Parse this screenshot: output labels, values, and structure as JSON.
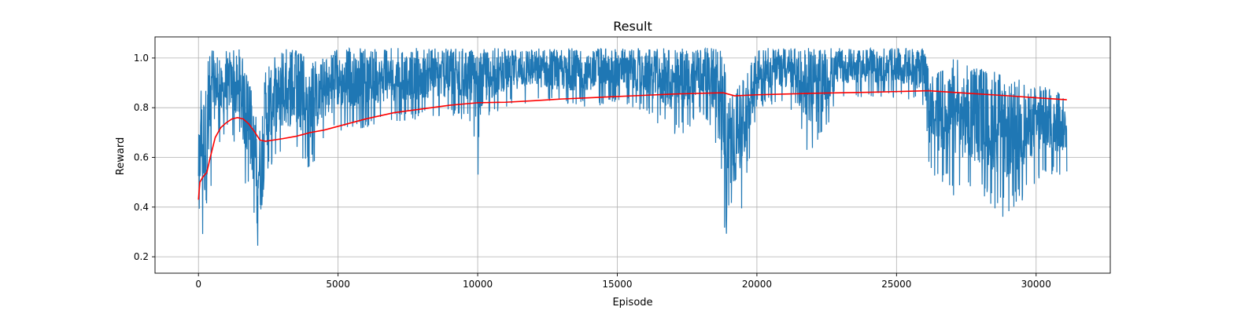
{
  "chart_data": {
    "type": "line",
    "title": "Result",
    "xlabel": "Episode",
    "ylabel": "Reward",
    "xlim": [
      -1556,
      32656
    ],
    "ylim": [
      0.134,
      1.085
    ],
    "grid": true,
    "xticks": [
      0,
      5000,
      10000,
      15000,
      20000,
      25000,
      30000
    ],
    "xtick_labels": [
      "0",
      "5000",
      "10000",
      "15000",
      "20000",
      "25000",
      "30000"
    ],
    "yticks": [
      0.2,
      0.4,
      0.6,
      0.8,
      1.0
    ],
    "ytick_labels": [
      "0.2",
      "0.4",
      "0.6",
      "0.8",
      "1.0"
    ],
    "colors": {
      "raw": "#1f77b4",
      "smoothed": "#ff0000"
    },
    "series": [
      {
        "values_kind": "raw_reward_envelope",
        "x": [
          0,
          100,
          200,
          300,
          400,
          600,
          800,
          1000,
          1200,
          1500,
          1800,
          2000,
          2200,
          2300,
          2400,
          2600,
          3000,
          3500,
          4000,
          4500,
          5000,
          6000,
          7000,
          8000,
          9000,
          9800,
          10000,
          10200,
          11000,
          12000,
          13000,
          14000,
          15000,
          16000,
          17000,
          17500,
          18000,
          18500,
          18800,
          19000,
          19300,
          19500,
          20000,
          21000,
          22000,
          23000,
          24000,
          25000,
          26000,
          26200,
          27000,
          28000,
          29000,
          30000,
          31100
        ],
        "upper": [
          0.72,
          0.9,
          0.95,
          1.0,
          1.04,
          1.04,
          0.98,
          1.04,
          1.04,
          1.04,
          0.9,
          0.85,
          0.8,
          0.78,
          0.97,
          1.0,
          1.04,
          1.04,
          0.98,
          1.0,
          1.04,
          1.04,
          1.04,
          1.04,
          1.04,
          1.04,
          1.0,
          1.04,
          1.04,
          1.04,
          1.04,
          1.04,
          1.04,
          1.04,
          1.04,
          1.04,
          1.04,
          1.04,
          1.04,
          0.84,
          0.88,
          0.92,
          1.04,
          1.04,
          1.04,
          1.04,
          1.04,
          1.04,
          1.04,
          0.92,
          1.0,
          0.96,
          0.93,
          0.9,
          0.85
        ],
        "lower": [
          0.35,
          0.3,
          0.22,
          0.17,
          0.35,
          0.68,
          0.65,
          0.68,
          0.7,
          0.55,
          0.45,
          0.33,
          0.19,
          0.25,
          0.48,
          0.56,
          0.58,
          0.6,
          0.55,
          0.65,
          0.7,
          0.72,
          0.74,
          0.75,
          0.76,
          0.74,
          0.5,
          0.72,
          0.8,
          0.82,
          0.8,
          0.8,
          0.82,
          0.78,
          0.68,
          0.7,
          0.78,
          0.68,
          0.21,
          0.35,
          0.34,
          0.4,
          0.8,
          0.82,
          0.58,
          0.84,
          0.84,
          0.84,
          0.8,
          0.52,
          0.44,
          0.42,
          0.34,
          0.5,
          0.53
        ]
      },
      {
        "values_kind": "smoothed_reward",
        "x": [
          0,
          50,
          150,
          300,
          400,
          600,
          800,
          1000,
          1200,
          1400,
          1600,
          1800,
          2000,
          2200,
          2400,
          3000,
          3500,
          4000,
          4500,
          5000,
          6000,
          7000,
          8000,
          9000,
          10000,
          11000,
          12000,
          13000,
          14000,
          15000,
          16000,
          17000,
          18000,
          18800,
          19200,
          20000,
          21000,
          22000,
          23000,
          24000,
          25000,
          26000,
          26200,
          27000,
          28000,
          29000,
          30000,
          31100
        ],
        "values": [
          0.43,
          0.5,
          0.52,
          0.54,
          0.59,
          0.68,
          0.72,
          0.74,
          0.755,
          0.76,
          0.755,
          0.735,
          0.705,
          0.67,
          0.665,
          0.675,
          0.685,
          0.7,
          0.71,
          0.725,
          0.755,
          0.78,
          0.795,
          0.81,
          0.82,
          0.822,
          0.828,
          0.835,
          0.84,
          0.845,
          0.85,
          0.855,
          0.858,
          0.86,
          0.848,
          0.852,
          0.855,
          0.858,
          0.86,
          0.862,
          0.865,
          0.868,
          0.868,
          0.862,
          0.855,
          0.848,
          0.84,
          0.832
        ]
      }
    ]
  }
}
